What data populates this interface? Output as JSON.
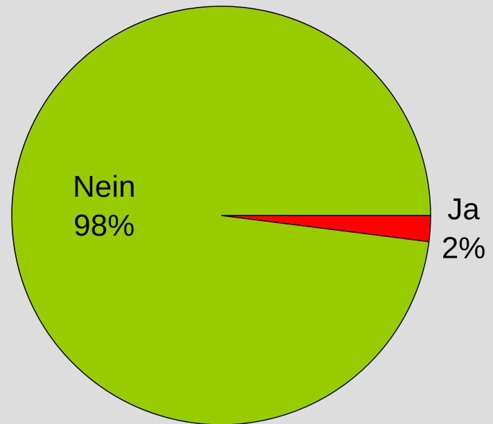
{
  "chart_data": {
    "type": "pie",
    "categories": [
      "Ja",
      "Nein"
    ],
    "values": [
      2,
      98
    ],
    "value_labels": [
      "2%",
      "98%"
    ],
    "colors": [
      "#ff0000",
      "#99cc00"
    ]
  }
}
